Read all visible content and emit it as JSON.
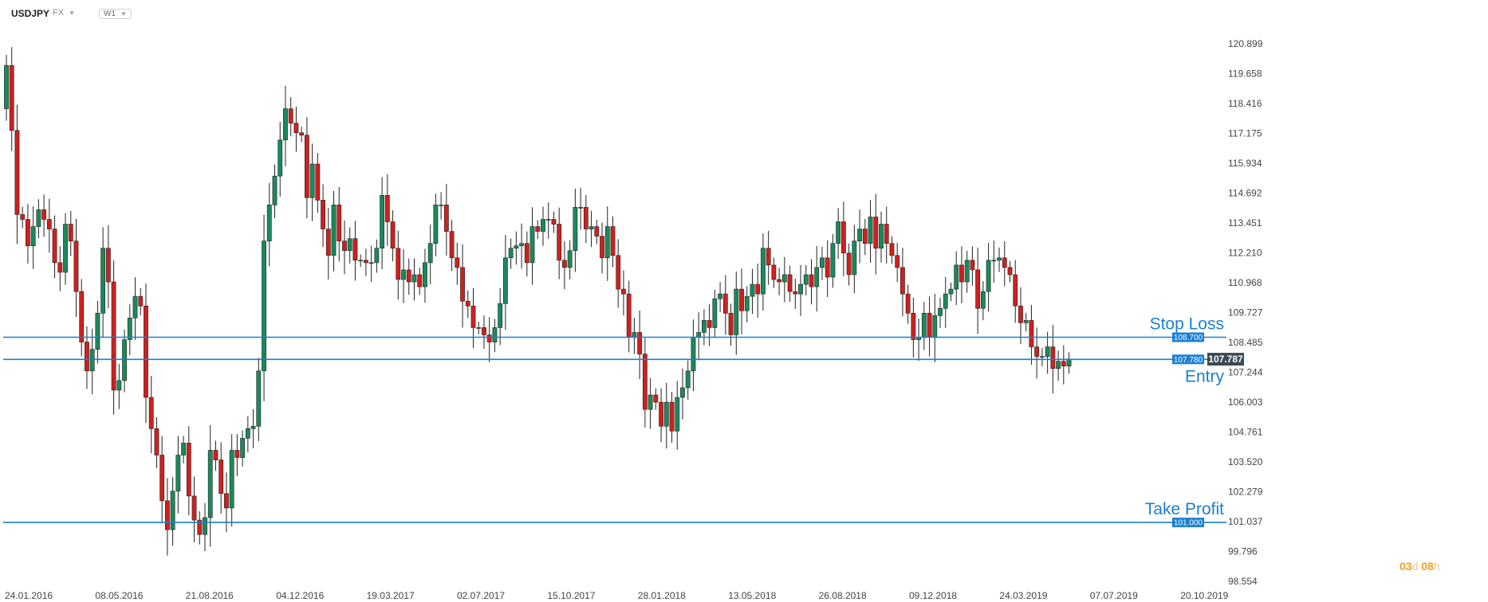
{
  "header": {
    "symbol": "USDJPY",
    "market": "FX",
    "timeframe": "W1"
  },
  "countdown": {
    "days": "03",
    "days_unit": "d",
    "hours": "08",
    "hours_unit": "h"
  },
  "colors": {
    "bull": "#1a8a5a",
    "bear": "#d0201e",
    "level": "#1a7fd0",
    "current": "#3c4a55"
  },
  "chart_data": {
    "type": "candlestick",
    "ylim": [
      98.554,
      121.6
    ],
    "y_ticks": [
      120.899,
      119.658,
      118.416,
      117.175,
      115.934,
      114.692,
      113.451,
      112.21,
      110.968,
      109.727,
      108.485,
      107.244,
      106.003,
      104.761,
      103.52,
      102.279,
      101.037,
      99.796,
      98.554
    ],
    "y_tick_labels": [
      "120.899",
      "119.658",
      "118.416",
      "117.175",
      "115.934",
      "114.692",
      "113.451",
      "112.210",
      "110.968",
      "109.727",
      "108.485",
      "107.244",
      "106.003",
      "104.761",
      "103.520",
      "102.279",
      "101.037",
      "99.796",
      "98.554"
    ],
    "x_tick_labels": [
      "24.01.2016",
      "08.05.2016",
      "21.08.2016",
      "04.12.2016",
      "19.03.2017",
      "02.07.2017",
      "15.10.2017",
      "28.01.2018",
      "13.05.2018",
      "26.08.2018",
      "09.12.2018",
      "24.03.2019",
      "07.07.2019",
      "20.10.2019"
    ],
    "levels": [
      {
        "name": "Stop Loss",
        "value": 108.7,
        "tag": "108.700"
      },
      {
        "name": "Entry",
        "value": 107.78,
        "tag": "107.780"
      },
      {
        "name": "Take Profit",
        "value": 101.0,
        "tag": "101.000"
      }
    ],
    "current_price": 107.787,
    "current_label": "107.787",
    "series_note": "",
    "close": [
      120.0,
      117.3,
      113.8,
      113.6,
      112.5,
      113.3,
      114.0,
      113.6,
      113.2,
      111.8,
      111.4,
      113.4,
      112.7,
      110.6,
      108.5,
      107.3,
      108.2,
      109.7,
      112.4,
      111.0,
      106.5,
      106.9,
      108.6,
      109.5,
      110.4,
      110.0,
      106.2,
      104.9,
      103.8,
      101.9,
      100.7,
      102.3,
      103.8,
      104.3,
      102.1,
      101.1,
      100.5,
      101.2,
      104.0,
      103.6,
      102.2,
      101.6,
      104.0,
      103.7,
      104.5,
      104.9,
      105.0,
      107.3,
      112.7,
      114.2,
      115.4,
      116.9,
      118.2,
      117.6,
      117.2,
      117.1,
      114.5,
      115.9,
      114.4,
      113.2,
      112.1,
      114.2,
      112.7,
      112.3,
      112.8,
      111.9,
      111.9,
      111.8,
      111.8,
      112.4,
      114.6,
      113.5,
      112.4,
      111.1,
      111.5,
      111.0,
      111.3,
      110.8,
      111.8,
      112.6,
      114.2,
      114.2,
      113.1,
      112.0,
      111.6,
      110.2,
      110.0,
      109.1,
      109.1,
      108.8,
      108.5,
      109.1,
      110.1,
      112.0,
      112.4,
      112.5,
      112.6,
      111.8,
      113.3,
      113.1,
      113.6,
      113.6,
      113.4,
      111.9,
      111.6,
      112.3,
      114.1,
      114.1,
      113.2,
      113.3,
      112.9,
      112.0,
      113.3,
      112.1,
      110.7,
      110.5,
      108.7,
      108.9,
      108.0,
      105.7,
      106.3,
      106.0,
      105.0,
      106.0,
      104.8,
      106.2,
      106.6,
      107.3,
      108.7,
      108.9,
      109.4,
      109.1,
      110.3,
      110.5,
      109.7,
      108.8,
      110.7,
      109.8,
      110.4,
      110.9,
      110.5,
      112.4,
      111.7,
      111.1,
      111.0,
      111.3,
      110.6,
      110.5,
      110.9,
      111.3,
      110.8,
      111.6,
      112.0,
      111.2,
      112.6,
      113.5,
      112.2,
      111.3,
      112.7,
      113.2,
      112.6,
      113.7,
      112.4,
      113.4,
      112.6,
      112.1,
      111.6,
      110.5,
      109.7,
      108.6,
      108.7,
      109.7,
      108.7,
      109.6,
      109.9,
      110.5,
      110.7,
      111.7,
      111.0,
      111.9,
      111.5,
      109.9,
      110.6,
      111.9,
      111.9,
      112.0,
      111.6,
      111.3,
      110.0,
      109.3,
      109.4,
      108.3,
      107.9,
      107.9,
      108.3,
      107.4,
      107.7,
      107.5,
      107.8
    ]
  }
}
